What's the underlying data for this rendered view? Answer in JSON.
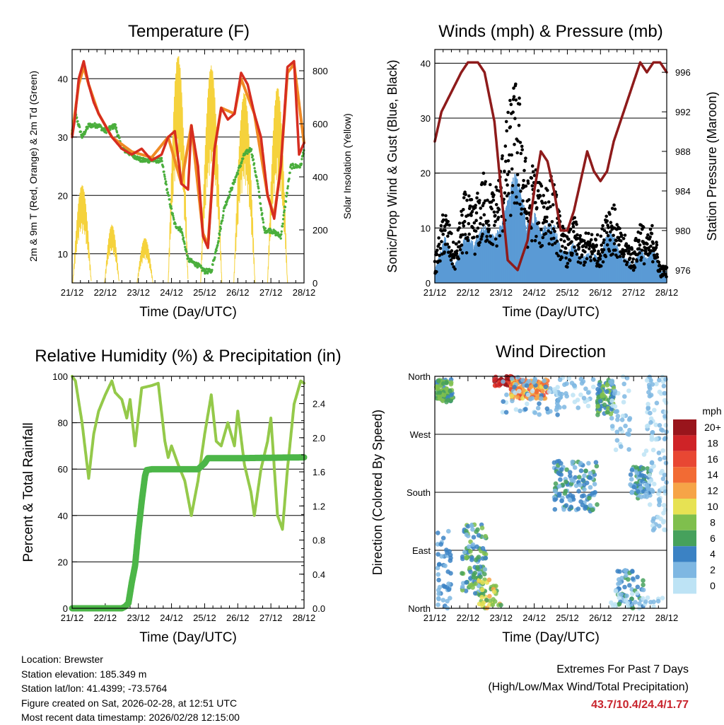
{
  "colors": {
    "temp2m": "#d62d20",
    "temp9m": "#f08a24",
    "dewpoint": "#4aae3c",
    "insolation": "#f5d23c",
    "wind": "#5b9bd5",
    "gust": "#000000",
    "pressure": "#8e1b1b",
    "rh": "#94c94a",
    "precip": "#4cb648",
    "extremes": "#c8232c"
  },
  "x_ticks": [
    "21/12",
    "22/12",
    "23/12",
    "24/12",
    "25/12",
    "26/12",
    "27/12",
    "28/12"
  ],
  "chart_data": [
    {
      "id": "temperature",
      "type": "line",
      "title": "Temperature (F)",
      "xlabel": "Time (Day/UTC)",
      "ylabel": "2m & 9m T (Red, Orange) & 2m Td (Green)",
      "ylabel_right": "Solar Insolation (Yellow)",
      "ylim": [
        5,
        45
      ],
      "ylim_right": [
        0,
        880
      ],
      "yticks": [
        10,
        20,
        30,
        40
      ],
      "yticks_right": [
        0,
        200,
        400,
        600,
        800
      ],
      "x_range": [
        0,
        7
      ],
      "series": [
        {
          "name": "2m T",
          "color_key": "temp2m",
          "x": [
            0,
            0.08,
            0.2,
            0.35,
            0.5,
            0.65,
            0.8,
            1.0,
            1.2,
            1.5,
            1.8,
            2.1,
            2.4,
            2.7,
            2.9,
            3.1,
            3.3,
            3.5,
            3.6,
            3.8,
            3.95,
            4.1,
            4.3,
            4.5,
            4.7,
            4.9,
            5.1,
            5.3,
            5.5,
            5.7,
            5.9,
            6.1,
            6.3,
            6.5,
            6.7,
            6.85,
            7.0
          ],
          "values": [
            30,
            33,
            40,
            43,
            39,
            36,
            34,
            32,
            30,
            28,
            27,
            28,
            26,
            27,
            30,
            31,
            22,
            21,
            32,
            25,
            13,
            11,
            28,
            35,
            33,
            34,
            41,
            39,
            34,
            30,
            20,
            16,
            25,
            42,
            43,
            27,
            29
          ]
        },
        {
          "name": "9m T",
          "color_key": "temp9m",
          "x": [
            0,
            0.2,
            0.35,
            0.5,
            0.8,
            1.2,
            1.8,
            2.4,
            2.9,
            3.3,
            3.6,
            3.95,
            4.1,
            4.3,
            4.5,
            4.9,
            5.1,
            5.5,
            5.9,
            6.1,
            6.3,
            6.5,
            6.7,
            7.0
          ],
          "values": [
            30.5,
            39,
            42,
            39,
            34,
            30,
            27.5,
            26.5,
            30,
            22,
            32,
            13.5,
            11.5,
            28,
            35,
            34,
            40,
            34,
            20,
            16.5,
            25,
            41,
            42.5,
            29
          ]
        },
        {
          "name": "2m Td",
          "color_key": "dewpoint",
          "x": [
            0,
            0.1,
            0.3,
            0.5,
            0.8,
            1.0,
            1.3,
            1.5,
            1.8,
            2.1,
            2.4,
            2.7,
            2.9,
            3.1,
            3.3,
            3.5,
            3.8,
            4.0,
            4.2,
            4.4,
            4.6,
            4.8,
            5.0,
            5.2,
            5.4,
            5.6,
            5.8,
            6.0,
            6.3,
            6.6,
            6.9,
            7.0
          ],
          "values": [
            31,
            34,
            30,
            32,
            32,
            31,
            32,
            28,
            27,
            26,
            26,
            26,
            20,
            15,
            14,
            9,
            8,
            7,
            7,
            12,
            18,
            21,
            24,
            27,
            28,
            22,
            14,
            14,
            13,
            25,
            25,
            28
          ]
        },
        {
          "name": "Solar Insolation",
          "color_key": "insolation",
          "axis": "right",
          "peaks": [
            {
              "center": 0.3,
              "height": 370,
              "width": 0.28
            },
            {
              "center": 1.2,
              "height": 220,
              "width": 0.22
            },
            {
              "center": 2.2,
              "height": 170,
              "width": 0.24
            },
            {
              "center": 3.2,
              "height": 860,
              "width": 0.3
            },
            {
              "center": 4.2,
              "height": 820,
              "width": 0.32
            },
            {
              "center": 5.2,
              "height": 720,
              "width": 0.32
            },
            {
              "center": 6.2,
              "height": 740,
              "width": 0.3
            }
          ]
        }
      ]
    },
    {
      "id": "winds",
      "type": "scatter",
      "title": "Winds (mph) & Pressure (mb)",
      "xlabel": "Time (Day/UTC)",
      "ylabel": "Sonic/Prop Wind & Gust (Blue, Black)",
      "ylabel_right": "Station Pressure (Maroon)",
      "ylim": [
        0,
        42.5
      ],
      "ylim_right": [
        974.7,
        998.3
      ],
      "yticks": [
        0,
        10,
        20,
        30,
        40
      ],
      "yticks_right": [
        976,
        980,
        984,
        988,
        992,
        996
      ],
      "x_range": [
        0,
        7
      ],
      "series": [
        {
          "name": "Wind speed",
          "color_key": "wind",
          "x": [
            0,
            0.3,
            0.6,
            0.9,
            1.2,
            1.5,
            1.8,
            2.0,
            2.2,
            2.4,
            2.6,
            2.8,
            3.0,
            3.2,
            3.4,
            3.6,
            3.8,
            4.0,
            4.2,
            4.4,
            4.6,
            4.8,
            5.0,
            5.2,
            5.4,
            5.6,
            5.8,
            6.0,
            6.2,
            6.4,
            6.6,
            6.8,
            7.0
          ],
          "values": [
            2,
            8,
            3,
            8,
            7,
            10,
            8,
            10,
            14,
            19,
            16,
            10,
            12,
            9,
            10,
            10,
            6,
            5,
            7,
            4,
            5,
            5,
            4,
            9,
            8,
            5,
            4,
            3,
            6,
            4,
            6,
            2,
            2
          ]
        },
        {
          "name": "Wind gust",
          "color_key": "gust",
          "x": [
            0,
            0.3,
            0.6,
            0.9,
            1.2,
            1.5,
            1.8,
            2.0,
            2.2,
            2.4,
            2.6,
            2.8,
            3.0,
            3.2,
            3.4,
            3.6,
            3.8,
            4.0,
            4.2,
            4.4,
            4.6,
            4.8,
            5.0,
            5.2,
            5.4,
            5.6,
            5.8,
            6.0,
            6.2,
            6.4,
            6.6,
            6.8,
            7.0
          ],
          "values": [
            4,
            14,
            6,
            16,
            14,
            20,
            16,
            22,
            30,
            36,
            32,
            18,
            22,
            17,
            20,
            18,
            11,
            8,
            12,
            8,
            9,
            9,
            8,
            15,
            14,
            9,
            8,
            6,
            12,
            8,
            11,
            3,
            3
          ]
        },
        {
          "name": "Station Pressure",
          "color_key": "pressure",
          "axis": "right",
          "x": [
            0,
            0.2,
            0.5,
            0.8,
            1.0,
            1.3,
            1.5,
            1.8,
            2.0,
            2.2,
            2.5,
            2.8,
            3.0,
            3.2,
            3.4,
            3.6,
            3.8,
            4.0,
            4.2,
            4.4,
            4.6,
            4.8,
            5.0,
            5.2,
            5.4,
            5.6,
            5.8,
            6.0,
            6.2,
            6.4,
            6.6,
            6.8,
            7.0
          ],
          "values": [
            989,
            992,
            994,
            996,
            997,
            997,
            996,
            991,
            984,
            977,
            976,
            979,
            984,
            988,
            987,
            984,
            980,
            980,
            982,
            985,
            988,
            986,
            985,
            986,
            989,
            991,
            993,
            995,
            997,
            996,
            997,
            997,
            996
          ]
        }
      ]
    },
    {
      "id": "humidity",
      "type": "line",
      "title": "Relative Humidity (%) & Precipitation (in)",
      "xlabel": "Time (Day/UTC)",
      "ylabel": "Percent & Total Rainfall",
      "ylim": [
        0,
        100
      ],
      "ylim_right": [
        0,
        2.72
      ],
      "yticks": [
        0,
        20,
        40,
        60,
        80,
        100
      ],
      "yticks_right": [
        0.0,
        0.4,
        0.8,
        1.2,
        1.6,
        2.0,
        2.4
      ],
      "x_range": [
        0,
        7
      ],
      "series": [
        {
          "name": "Relative Humidity",
          "color_key": "rh",
          "x": [
            0,
            0.1,
            0.3,
            0.5,
            0.65,
            0.8,
            1.0,
            1.2,
            1.3,
            1.5,
            1.65,
            1.75,
            1.9,
            2.1,
            2.4,
            2.6,
            2.8,
            2.9,
            3.0,
            3.2,
            3.4,
            3.6,
            3.8,
            4.0,
            4.2,
            4.35,
            4.5,
            4.7,
            4.9,
            5.0,
            5.2,
            5.4,
            5.5,
            5.7,
            5.9,
            6.0,
            6.2,
            6.35,
            6.5,
            6.7,
            6.9,
            7.0
          ],
          "values": [
            100,
            98,
            80,
            56,
            75,
            85,
            92,
            98,
            93,
            90,
            82,
            90,
            70,
            95,
            96,
            97,
            72,
            65,
            70,
            62,
            55,
            40,
            55,
            75,
            92,
            72,
            70,
            80,
            70,
            85,
            62,
            50,
            40,
            60,
            72,
            82,
            40,
            34,
            60,
            88,
            98,
            97
          ]
        },
        {
          "name": "Total Precipitation",
          "color_key": "precip",
          "axis": "right",
          "x": [
            0,
            1.5,
            1.6,
            1.7,
            1.8,
            1.9,
            2.0,
            2.1,
            2.2,
            2.25,
            2.4,
            3.0,
            3.8,
            4.0,
            4.1,
            5.0,
            7.0
          ],
          "values": [
            0,
            0,
            0.02,
            0.06,
            0.3,
            0.5,
            0.9,
            1.25,
            1.55,
            1.62,
            1.63,
            1.63,
            1.63,
            1.7,
            1.76,
            1.76,
            1.77
          ]
        }
      ]
    },
    {
      "id": "direction",
      "type": "scatter",
      "title": "Wind Direction",
      "xlabel": "Time (Day/UTC)",
      "ylabel": "Direction (Colored By Speed)",
      "ylim": [
        0,
        360
      ],
      "yticks": [
        0,
        90,
        180,
        270,
        360
      ],
      "ytick_labels": [
        "North",
        "East",
        "South",
        "West",
        "North"
      ],
      "x_range": [
        0,
        7
      ],
      "colorbar": {
        "title": "mph",
        "labels": [
          "20+",
          "18",
          "16",
          "14",
          "12",
          "10",
          "8",
          "6",
          "4",
          "2",
          "0"
        ],
        "colors": [
          "#99151c",
          "#cf2327",
          "#e84733",
          "#f26b34",
          "#f6a447",
          "#e7e253",
          "#7fbf4d",
          "#46a15c",
          "#3b82c4",
          "#7eb7e2",
          "#bde3f5"
        ]
      },
      "clusters": [
        {
          "x": [
            0.05,
            0.55
          ],
          "dir": [
            320,
            355
          ],
          "speed": [
            4,
            9
          ],
          "n": 90
        },
        {
          "x": [
            0.05,
            0.5
          ],
          "dir": [
            0,
            120
          ],
          "speed": [
            1,
            5
          ],
          "n": 45
        },
        {
          "x": [
            0.8,
            1.55
          ],
          "dir": [
            20,
            130
          ],
          "speed": [
            2,
            8
          ],
          "n": 110
        },
        {
          "x": [
            1.3,
            2.0
          ],
          "dir": [
            0,
            50
          ],
          "speed": [
            6,
            13
          ],
          "n": 40
        },
        {
          "x": [
            1.8,
            2.4
          ],
          "dir": [
            345,
            360
          ],
          "speed": [
            16,
            22
          ],
          "n": 50
        },
        {
          "x": [
            2.3,
            3.4
          ],
          "dir": [
            325,
            355
          ],
          "speed": [
            10,
            16
          ],
          "n": 130
        },
        {
          "x": [
            2.0,
            3.8
          ],
          "dir": [
            300,
            360
          ],
          "speed": [
            0,
            4
          ],
          "n": 60
        },
        {
          "x": [
            3.6,
            4.9
          ],
          "dir": [
            150,
            230
          ],
          "speed": [
            1,
            6
          ],
          "n": 130
        },
        {
          "x": [
            3.6,
            4.8
          ],
          "dir": [
            310,
            360
          ],
          "speed": [
            0,
            3
          ],
          "n": 40
        },
        {
          "x": [
            4.9,
            5.4
          ],
          "dir": [
            300,
            355
          ],
          "speed": [
            3,
            9
          ],
          "n": 80
        },
        {
          "x": [
            5.3,
            5.9
          ],
          "dir": [
            240,
            360
          ],
          "speed": [
            0,
            3
          ],
          "n": 40
        },
        {
          "x": [
            5.5,
            6.3
          ],
          "dir": [
            0,
            60
          ],
          "speed": [
            2,
            7
          ],
          "n": 50
        },
        {
          "x": [
            5.9,
            6.5
          ],
          "dir": [
            170,
            220
          ],
          "speed": [
            1,
            6
          ],
          "n": 80
        },
        {
          "x": [
            6.4,
            7.0
          ],
          "dir": [
            260,
            360
          ],
          "speed": [
            0,
            2
          ],
          "n": 60
        },
        {
          "x": [
            6.3,
            7.0
          ],
          "dir": [
            120,
            250
          ],
          "speed": [
            0,
            2
          ],
          "n": 60
        },
        {
          "x": [
            5.2,
            6.9
          ],
          "dir": [
            0,
            30
          ],
          "speed": [
            0,
            2
          ],
          "n": 30
        }
      ]
    }
  ],
  "info": {
    "location": "Location: Brewster",
    "elevation": "Station elevation: 185.349 m",
    "latlon": "Station lat/lon: 41.4399; -73.5764",
    "created": "Figure created on Sat, 2026-02-28, at 12:51 UTC",
    "recent": "Most recent data timestamp: 2026/02/28 12:15:00"
  },
  "extremes": {
    "title": "Extremes For Past 7 Days",
    "subtitle": "(High/Low/Max Wind/Total Precipitation)",
    "values": "43.7/10.4/24.4/1.77"
  }
}
